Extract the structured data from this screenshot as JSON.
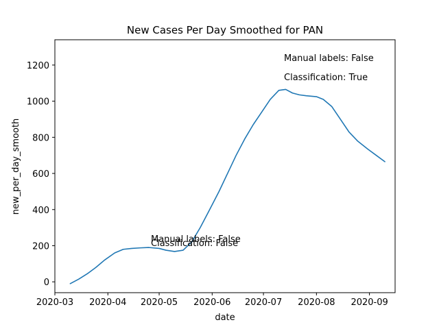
{
  "chart_data": {
    "type": "line",
    "title": "New Cases Per Day Smoothed for PAN",
    "xlabel": "date",
    "ylabel": "new_per_day_smooth",
    "xlim": [
      "2020-03-01",
      "2020-09-16"
    ],
    "ylim": [
      -60,
      1340
    ],
    "x_ticks": [
      "2020-03",
      "2020-04",
      "2020-05",
      "2020-06",
      "2020-07",
      "2020-08",
      "2020-09"
    ],
    "y_ticks": [
      0,
      200,
      400,
      600,
      800,
      1000,
      1200
    ],
    "grid": false,
    "legend": "none",
    "series": [
      {
        "color": "#1f77b4",
        "x": [
          "2020-03-10",
          "2020-03-15",
          "2020-03-20",
          "2020-03-25",
          "2020-03-30",
          "2020-04-05",
          "2020-04-10",
          "2020-04-15",
          "2020-04-20",
          "2020-04-25",
          "2020-05-01",
          "2020-05-05",
          "2020-05-10",
          "2020-05-15",
          "2020-05-20",
          "2020-05-25",
          "2020-05-30",
          "2020-06-05",
          "2020-06-10",
          "2020-06-15",
          "2020-06-20",
          "2020-06-25",
          "2020-06-30",
          "2020-07-05",
          "2020-07-10",
          "2020-07-14",
          "2020-07-18",
          "2020-07-22",
          "2020-07-26",
          "2020-08-01",
          "2020-08-05",
          "2020-08-10",
          "2020-08-15",
          "2020-08-20",
          "2020-08-25",
          "2020-08-31",
          "2020-09-05",
          "2020-09-10"
        ],
        "y": [
          -10,
          15,
          45,
          80,
          120,
          160,
          180,
          185,
          188,
          190,
          185,
          175,
          168,
          175,
          220,
          300,
          390,
          500,
          600,
          700,
          790,
          870,
          940,
          1010,
          1060,
          1065,
          1045,
          1035,
          1030,
          1025,
          1010,
          970,
          900,
          830,
          780,
          735,
          700,
          665
        ]
      }
    ]
  },
  "annotations": {
    "upper_manual": "Manual labels: False",
    "upper_class": "Classification: True",
    "lower_manual": "Manual labels: False",
    "lower_class": "Classification: False"
  }
}
